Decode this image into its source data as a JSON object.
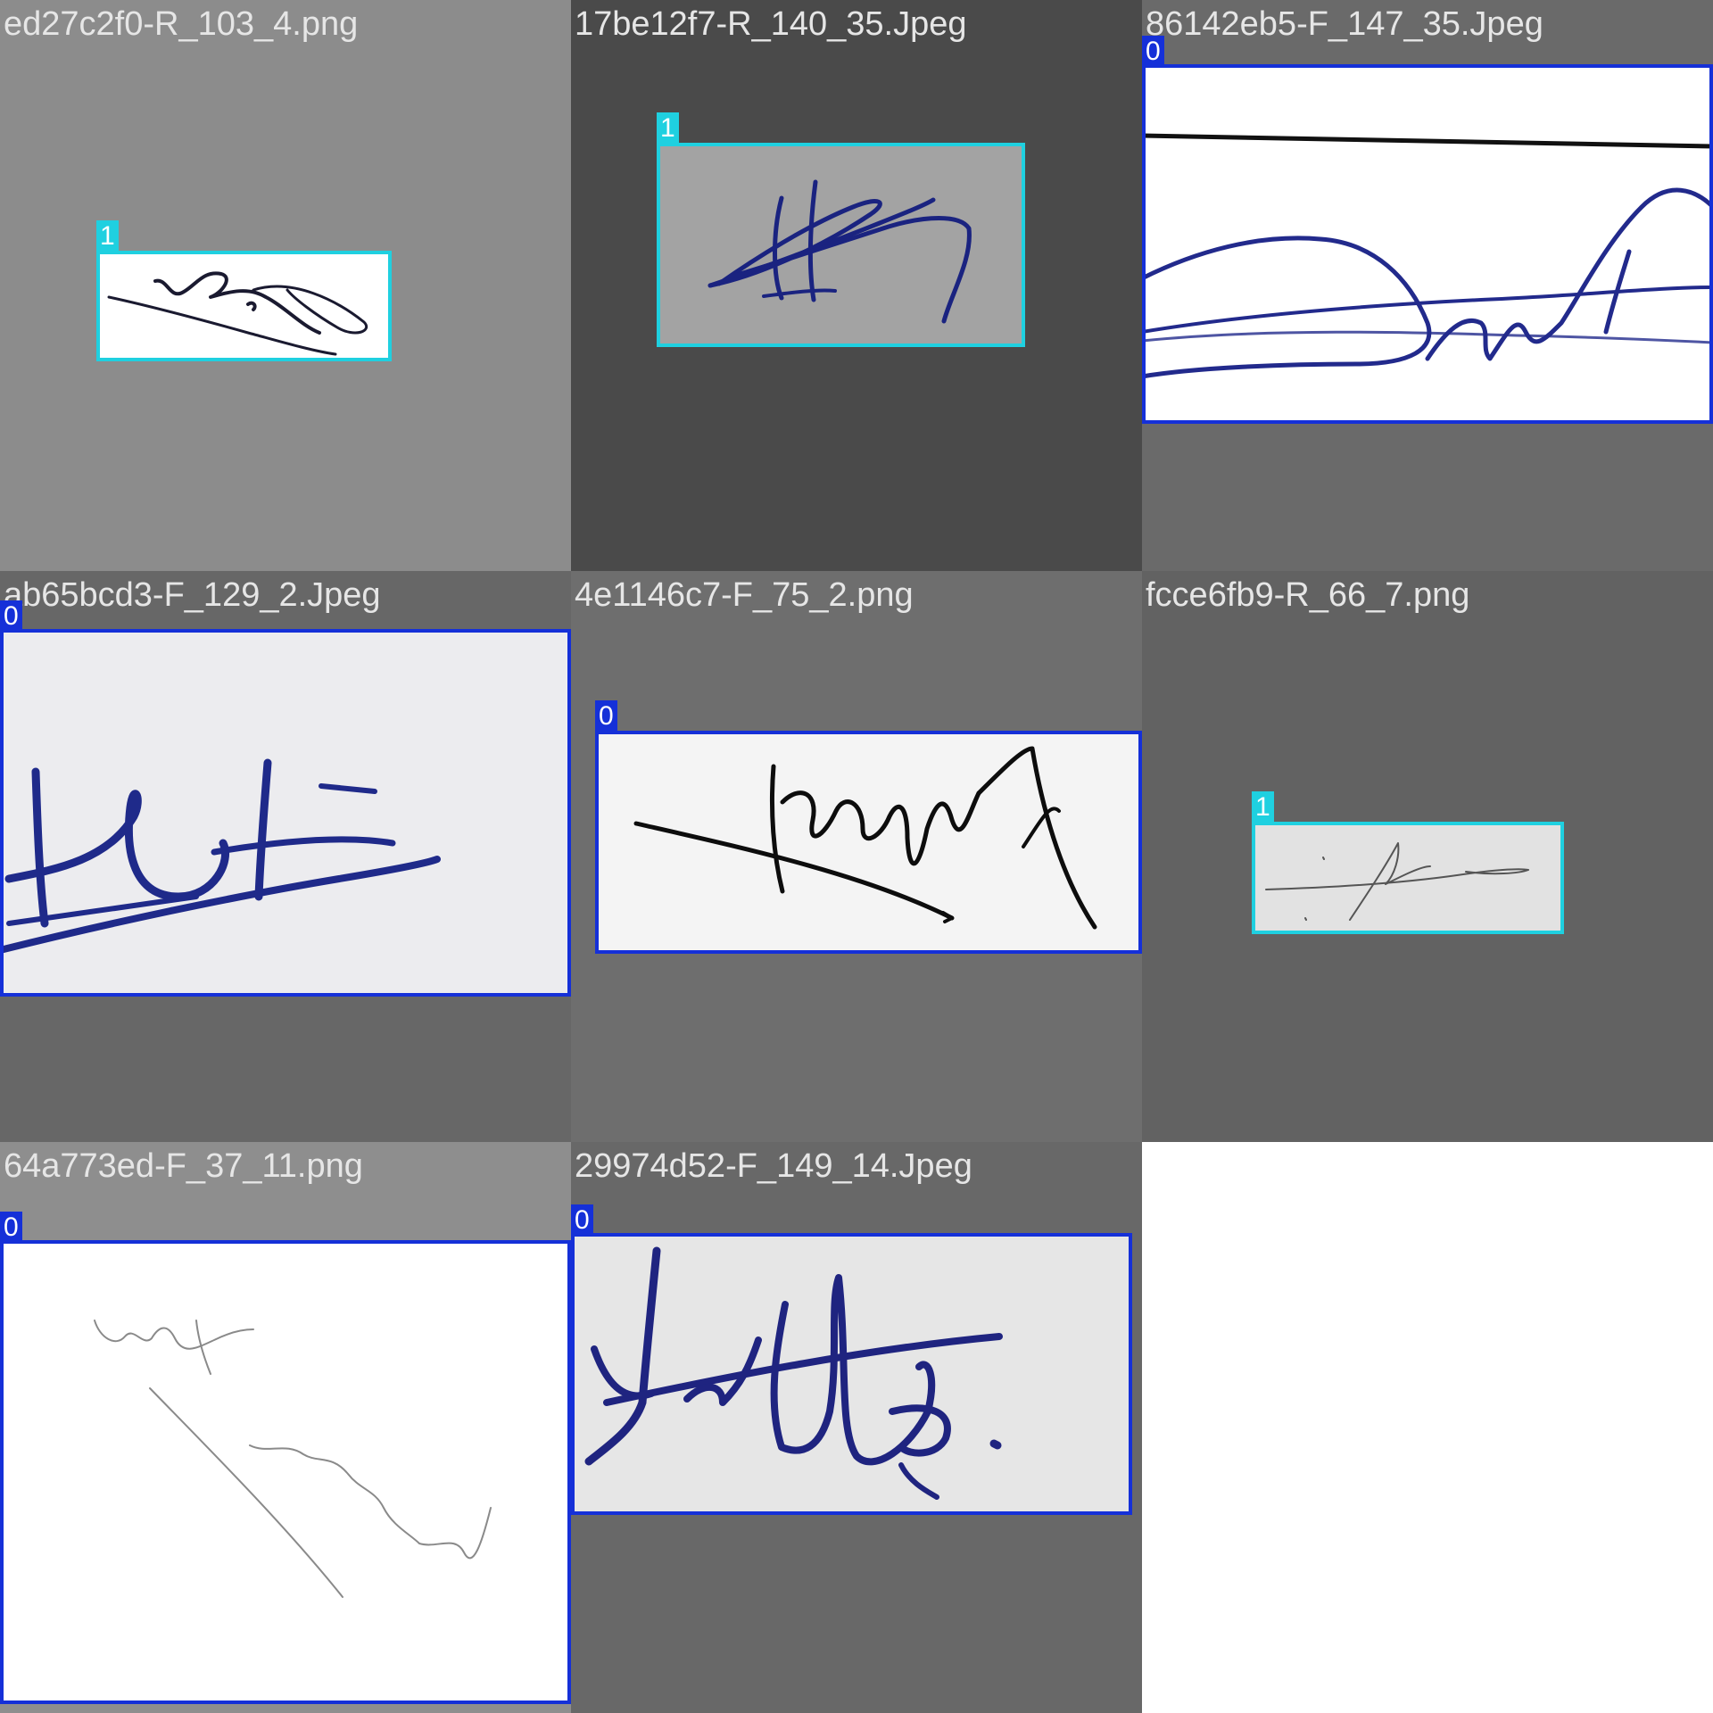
{
  "class_colors": {
    "0": "#1530d8",
    "1": "#1fd0e0"
  },
  "tiles": [
    {
      "caption": "ed27c2f0-R_103_4.png",
      "background": "#8c8c8c",
      "crop_background": "#ffffff",
      "ink": "#1a1a30",
      "label": "1"
    },
    {
      "caption": "17be12f7-R_140_35.Jpeg",
      "background": "#4a4a4a",
      "crop_background": "#a3a3a3",
      "ink": "#1a2380",
      "label": "1"
    },
    {
      "caption": "86142eb5-F_147_35.Jpeg",
      "background": "#6a6a6a",
      "crop_background": "#ffffff",
      "ink": "#222a8c",
      "label": "0"
    },
    {
      "caption": "ab65bcd3-F_129_2.Jpeg",
      "background": "#676767",
      "crop_background": "#ececef",
      "ink": "#1f2a8a",
      "label": "0"
    },
    {
      "caption": "4e1146c7-F_75_2.png",
      "background": "#6e6e6e",
      "crop_background": "#f4f4f4",
      "ink": "#0d0d0d",
      "label": "0"
    },
    {
      "caption": "fcce6fb9-R_66_7.png",
      "background": "#626262",
      "crop_background": "#e2e2e2",
      "ink": "#555555",
      "label": "1"
    },
    {
      "caption": "64a773ed-F_37_11.png",
      "background": "#8e8e8e",
      "crop_background": "#ffffff",
      "ink": "#8a8a8a",
      "label": "0"
    },
    {
      "caption": "29974d52-F_149_14.Jpeg",
      "background": "#686868",
      "crop_background": "#e6e6e6",
      "ink": "#1f2480",
      "label": "0"
    }
  ]
}
